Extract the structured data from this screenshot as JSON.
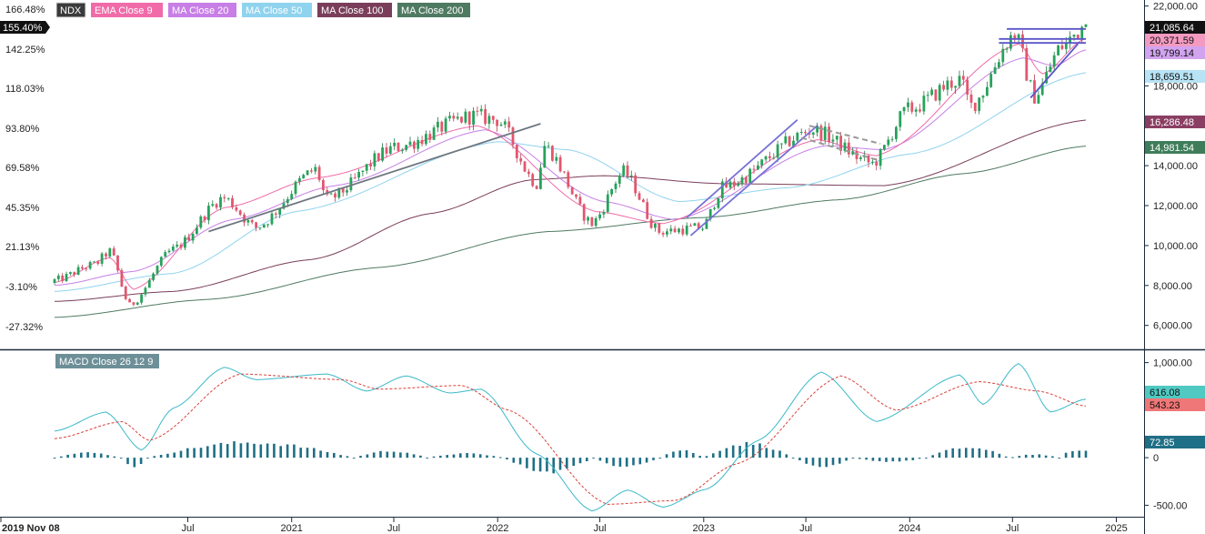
{
  "chart_data": {
    "type": "candlestick",
    "title": "",
    "symbol": "NDX",
    "legend": [
      {
        "label": "NDX",
        "color": "#3b3b3b"
      },
      {
        "label": "EMA Close 9",
        "color": "#f06ba8"
      },
      {
        "label": "MA Close 20",
        "color": "#c77ee6"
      },
      {
        "label": "MA Close 50",
        "color": "#8fd3ee"
      },
      {
        "label": "MA Close 100",
        "color": "#7a3e5a"
      },
      {
        "label": "MA Close 200",
        "color": "#4f7a62"
      }
    ],
    "x_ticks": [
      "2019 Nov 08",
      "Jul",
      "2021",
      "Jul",
      "2022",
      "Jul",
      "2023",
      "Jul",
      "2024",
      "Jul",
      "2025"
    ],
    "y_left_ticks": [
      "166.48%",
      "142.25%",
      "118.03%",
      "93.80%",
      "69.58%",
      "45.35%",
      "21.13%",
      "-3.10%",
      "-27.32%"
    ],
    "y_right_ticks": [
      "22,000.00",
      "18,000.00",
      "14,000.00",
      "12,000.00",
      "10,000.00",
      "8,000.00",
      "6,000.00"
    ],
    "ylim": [
      4800,
      22300
    ],
    "price_path": [
      [
        "2019-11-08",
        8250
      ],
      [
        "2020-01-17",
        9050
      ],
      [
        "2020-02-14",
        9700
      ],
      [
        "2020-03-20",
        7000
      ],
      [
        "2020-06-05",
        9800
      ],
      [
        "2020-09-02",
        12400
      ],
      [
        "2020-10-30",
        10900
      ],
      [
        "2021-02-12",
        13800
      ],
      [
        "2021-03-05",
        12300
      ],
      [
        "2021-07-02",
        14900
      ],
      [
        "2021-11-19",
        16500
      ],
      [
        "2021-12-31",
        16300
      ],
      [
        "2022-03-11",
        13100
      ],
      [
        "2022-03-25",
        15000
      ],
      [
        "2022-06-17",
        11100
      ],
      [
        "2022-08-12",
        13700
      ],
      [
        "2022-10-14",
        10700
      ],
      [
        "2022-12-30",
        10900
      ],
      [
        "2023-02-03",
        12900
      ],
      [
        "2023-07-14",
        15800
      ],
      [
        "2023-10-27",
        14100
      ],
      [
        "2023-12-29",
        16800
      ],
      [
        "2024-03-29",
        18300
      ],
      [
        "2024-04-19",
        17000
      ],
      [
        "2024-07-05",
        20600
      ],
      [
        "2024-08-09",
        17500
      ],
      [
        "2024-09-27",
        20000
      ],
      [
        "2024-11-08",
        21085
      ]
    ],
    "ema9_path": [
      [
        "2019-11-08",
        8150
      ],
      [
        "2020-02-14",
        9400
      ],
      [
        "2020-03-27",
        7800
      ],
      [
        "2020-09-04",
        11900
      ],
      [
        "2021-02-19",
        13400
      ],
      [
        "2021-11-26",
        16000
      ],
      [
        "2022-06-24",
        11700
      ],
      [
        "2022-10-21",
        11100
      ],
      [
        "2023-07-21",
        15300
      ],
      [
        "2023-11-03",
        14500
      ],
      [
        "2024-07-12",
        20100
      ],
      [
        "2024-08-23",
        18600
      ],
      [
        "2024-11-08",
        20371
      ]
    ],
    "ma20_path": [
      [
        "2019-11-08",
        8000
      ],
      [
        "2020-03-27",
        8700
      ],
      [
        "2020-09-18",
        11300
      ],
      [
        "2021-03-19",
        13000
      ],
      [
        "2021-12-10",
        15800
      ],
      [
        "2022-07-08",
        12200
      ],
      [
        "2022-11-11",
        11300
      ],
      [
        "2023-08-04",
        15000
      ],
      [
        "2023-11-17",
        14800
      ],
      [
        "2024-07-19",
        19400
      ],
      [
        "2024-09-13",
        19000
      ],
      [
        "2024-11-08",
        19799
      ]
    ],
    "ma50_path": [
      [
        "2019-11-08",
        7700
      ],
      [
        "2020-06-05",
        8600
      ],
      [
        "2021-01-08",
        11700
      ],
      [
        "2021-12-31",
        15200
      ],
      [
        "2022-05-06",
        14800
      ],
      [
        "2022-11-18",
        12200
      ],
      [
        "2023-06-02",
        12900
      ],
      [
        "2024-01-05",
        14600
      ],
      [
        "2024-11-08",
        18659
      ]
    ],
    "ma100_path": [
      [
        "2019-11-08",
        7200
      ],
      [
        "2020-06-05",
        7700
      ],
      [
        "2021-02-05",
        9300
      ],
      [
        "2021-09-03",
        11600
      ],
      [
        "2022-03-04",
        13300
      ],
      [
        "2022-07-08",
        13500
      ],
      [
        "2023-02-03",
        13100
      ],
      [
        "2023-11-17",
        13000
      ],
      [
        "2024-11-08",
        16286
      ]
    ],
    "ma200_path": [
      [
        "2019-11-08",
        6400
      ],
      [
        "2020-08-07",
        7300
      ],
      [
        "2021-06-04",
        8900
      ],
      [
        "2022-04-01",
        10700
      ],
      [
        "2022-12-30",
        11400
      ],
      [
        "2023-09-01",
        12300
      ],
      [
        "2024-04-05",
        13600
      ],
      [
        "2024-11-08",
        14981
      ]
    ],
    "price_tags": [
      {
        "label": "21,085.64",
        "value": 21085,
        "bg": "#111111",
        "fg": "#ffffff"
      },
      {
        "label": "20,371.59",
        "value": 20371,
        "bg": "#f49ac1",
        "fg": "#111111"
      },
      {
        "label": "19,799.14",
        "value": 19799,
        "bg": "#d2a4f0",
        "fg": "#111111"
      },
      {
        "label": "18,659.51",
        "value": 18659,
        "bg": "#b8e3f4",
        "fg": "#111111"
      },
      {
        "label": "16,286.48",
        "value": 16286,
        "bg": "#8a3e62",
        "fg": "#ffffff"
      },
      {
        "label": "14,981.54",
        "value": 14981,
        "bg": "#3f7d5a",
        "fg": "#ffffff"
      }
    ],
    "current_pct_tag": "155.40%",
    "trendlines": [
      {
        "from": [
          "2020-08-07",
          10700
        ],
        "to": [
          "2022-03-18",
          16100
        ],
        "color": "#6e7680",
        "dash": false
      },
      {
        "from": [
          "2022-12-09",
          10500
        ],
        "to": [
          "2023-07-21",
          16000
        ],
        "color": "#7771d6",
        "dash": false
      },
      {
        "from": [
          "2022-12-02",
          11400
        ],
        "to": [
          "2023-06-16",
          16300
        ],
        "color": "#7771d6",
        "dash": false
      },
      {
        "from": [
          "2023-06-23",
          15400
        ],
        "to": [
          "2023-11-03",
          14300
        ],
        "color": "#999999",
        "dash": true
      },
      {
        "from": [
          "2023-07-07",
          16000
        ],
        "to": [
          "2023-11-10",
          15100
        ],
        "color": "#999999",
        "dash": true
      },
      {
        "from": [
          "2024-06-21",
          20850
        ],
        "to": [
          "2024-11-08",
          20850
        ],
        "color": "#5a55c8",
        "dash": false
      },
      {
        "from": [
          "2024-06-07",
          20350
        ],
        "to": [
          "2024-11-08",
          20350
        ],
        "color": "#5a55c8",
        "dash": false
      },
      {
        "from": [
          "2024-06-07",
          20150
        ],
        "to": [
          "2024-11-08",
          20150
        ],
        "color": "#5a55c8",
        "dash": false
      },
      {
        "from": [
          "2024-08-02",
          17400
        ],
        "to": [
          "2024-10-25",
          20100
        ],
        "color": "#5a55c8",
        "dash": false
      }
    ],
    "macd": {
      "legend": "MACD Close 26 12 9",
      "y_ticks": [
        "1,000.00",
        "0",
        "-500.00"
      ],
      "ylim": [
        -620,
        1120
      ],
      "macd_path": [
        [
          "2019-11-08",
          280
        ],
        [
          "2020-02-07",
          480
        ],
        [
          "2020-04-10",
          80
        ],
        [
          "2020-06-05",
          520
        ],
        [
          "2020-09-04",
          950
        ],
        [
          "2020-10-30",
          820
        ],
        [
          "2021-03-05",
          880
        ],
        [
          "2021-05-14",
          700
        ],
        [
          "2021-07-23",
          860
        ],
        [
          "2021-10-08",
          680
        ],
        [
          "2021-12-03",
          720
        ],
        [
          "2022-03-11",
          40
        ],
        [
          "2022-06-17",
          -560
        ],
        [
          "2022-08-19",
          -340
        ],
        [
          "2022-10-21",
          -520
        ],
        [
          "2023-01-06",
          -330
        ],
        [
          "2023-04-07",
          180
        ],
        [
          "2023-07-28",
          900
        ],
        [
          "2023-11-03",
          380
        ],
        [
          "2024-03-29",
          870
        ],
        [
          "2024-05-10",
          560
        ],
        [
          "2024-07-12",
          990
        ],
        [
          "2024-09-06",
          480
        ],
        [
          "2024-11-08",
          616
        ]
      ],
      "signal_path": [
        [
          "2019-11-08",
          200
        ],
        [
          "2020-03-06",
          380
        ],
        [
          "2020-04-24",
          180
        ],
        [
          "2020-10-02",
          880
        ],
        [
          "2021-04-02",
          820
        ],
        [
          "2021-06-04",
          720
        ],
        [
          "2021-10-29",
          760
        ],
        [
          "2022-01-21",
          500
        ],
        [
          "2022-07-15",
          -490
        ],
        [
          "2022-11-11",
          -450
        ],
        [
          "2023-03-03",
          -60
        ],
        [
          "2023-09-01",
          860
        ],
        [
          "2023-12-08",
          500
        ],
        [
          "2024-05-03",
          800
        ],
        [
          "2024-08-16",
          700
        ],
        [
          "2024-11-08",
          543
        ]
      ],
      "hist_segments": [
        [
          0,
          20,
          60
        ],
        [
          20,
          28,
          -120
        ],
        [
          28,
          90,
          180
        ],
        [
          90,
          112,
          80
        ],
        [
          112,
          135,
          50
        ],
        [
          135,
          162,
          -170
        ],
        [
          162,
          182,
          -110
        ],
        [
          182,
          195,
          90
        ],
        [
          195,
          222,
          170
        ],
        [
          222,
          240,
          -100
        ],
        [
          240,
          262,
          -50
        ],
        [
          262,
          287,
          120
        ],
        [
          287,
          302,
          40
        ],
        [
          302,
          311,
          90
        ]
      ],
      "tags": [
        {
          "label": "616.08",
          "value": 616,
          "bg": "#4fc9c2",
          "fg": "#111111"
        },
        {
          "label": "543.23",
          "value": 543,
          "bg": "#f07777",
          "fg": "#111111"
        },
        {
          "label": "72.85",
          "value": 73,
          "bg": "#1f6f86",
          "fg": "#ffffff"
        }
      ]
    }
  }
}
